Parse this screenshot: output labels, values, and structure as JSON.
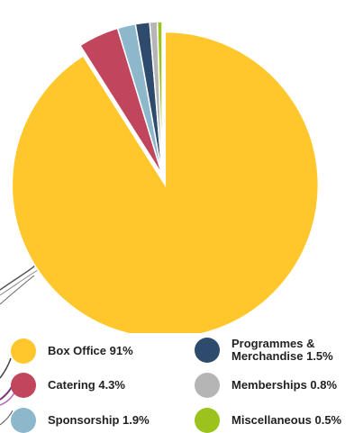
{
  "chart_data": {
    "type": "pie",
    "title": "",
    "slices": [
      {
        "label": "Box Office 91%",
        "value": 91,
        "color": "#FFC72C"
      },
      {
        "label": "Catering 4.3%",
        "value": 4.3,
        "color": "#C2455E"
      },
      {
        "label": "Sponsorship 1.9%",
        "value": 1.9,
        "color": "#8DB7CB"
      },
      {
        "label": "Programmes &\nMerchandise 1.5%",
        "value": 1.5,
        "color": "#2E4B6E"
      },
      {
        "label": "Memberships 0.8%",
        "value": 0.8,
        "color": "#B5B5B5"
      },
      {
        "label": "Miscellaneous 0.5%",
        "value": 0.5,
        "color": "#9BC31B"
      }
    ],
    "exploded_slice": "Box Office 91%",
    "legend_placement": "bottom"
  },
  "legend": [
    {
      "label": "Box Office 91%",
      "color": "#FFC72C"
    },
    {
      "label": "Programmes &\nMerchandise 1.5%",
      "color": "#2E4B6E"
    },
    {
      "label": "Catering 4.3%",
      "color": "#C2455E"
    },
    {
      "label": "Memberships 0.8%",
      "color": "#B5B5B5"
    },
    {
      "label": "Sponsorship 1.9%",
      "color": "#8DB7CB"
    },
    {
      "label": "Miscellaneous 0.5%",
      "color": "#9BC31B"
    }
  ]
}
